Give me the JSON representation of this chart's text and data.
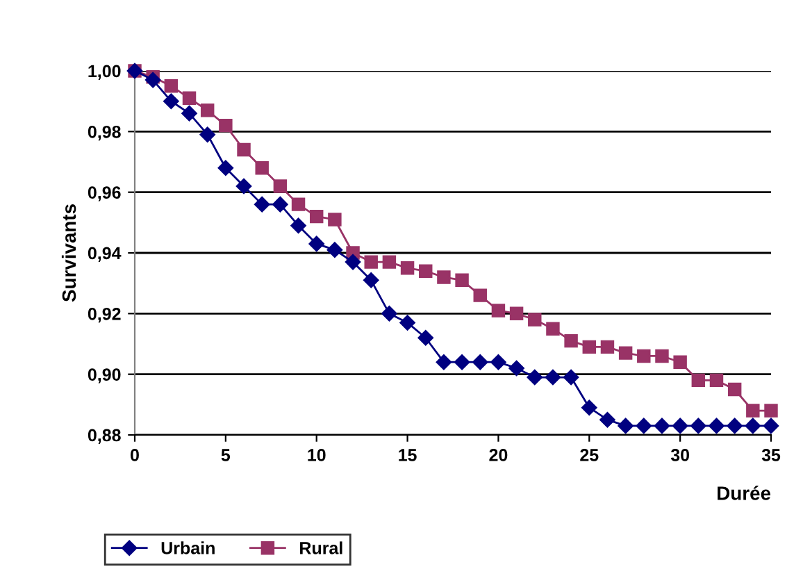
{
  "chart_data": {
    "type": "line",
    "xlabel": "Durée",
    "ylabel": "Survivants",
    "x": [
      0,
      1,
      2,
      3,
      4,
      5,
      6,
      7,
      8,
      9,
      10,
      11,
      12,
      13,
      14,
      15,
      16,
      17,
      18,
      19,
      20,
      21,
      22,
      23,
      24,
      25,
      26,
      27,
      28,
      29,
      30,
      31,
      32,
      33,
      34,
      35
    ],
    "series": [
      {
        "name": "Urbain",
        "color": "#000080",
        "marker": "diamond",
        "values": [
          1.0,
          0.997,
          0.99,
          0.986,
          0.979,
          0.968,
          0.962,
          0.956,
          0.956,
          0.949,
          0.943,
          0.941,
          0.937,
          0.931,
          0.92,
          0.917,
          0.912,
          0.904,
          0.904,
          0.904,
          0.904,
          0.902,
          0.899,
          0.899,
          0.899,
          0.889,
          0.885,
          0.883,
          0.883,
          0.883,
          0.883,
          0.883,
          0.883,
          0.883,
          0.883,
          0.883
        ]
      },
      {
        "name": "Rural",
        "color": "#993366",
        "marker": "square",
        "values": [
          1.0,
          0.998,
          0.995,
          0.991,
          0.987,
          0.982,
          0.974,
          0.968,
          0.962,
          0.956,
          0.952,
          0.951,
          0.94,
          0.937,
          0.937,
          0.935,
          0.934,
          0.932,
          0.931,
          0.926,
          0.921,
          0.92,
          0.918,
          0.915,
          0.911,
          0.909,
          0.909,
          0.907,
          0.906,
          0.906,
          0.904,
          0.898,
          0.898,
          0.895,
          0.888,
          0.888
        ]
      }
    ],
    "xlim": [
      0,
      35
    ],
    "xticks": [
      0,
      5,
      10,
      15,
      20,
      25,
      30,
      35
    ],
    "ylim": [
      0.88,
      1.0
    ],
    "yticks": [
      {
        "value": 0.88,
        "label": "0,88"
      },
      {
        "value": 0.9,
        "label": "0,90"
      },
      {
        "value": 0.92,
        "label": "0,92"
      },
      {
        "value": 0.94,
        "label": "0,94"
      },
      {
        "value": 0.96,
        "label": "0,96"
      },
      {
        "value": 0.98,
        "label": "0,98"
      },
      {
        "value": 1.0,
        "label": "1,00"
      }
    ],
    "grid": "y",
    "legend": "bottom left"
  }
}
